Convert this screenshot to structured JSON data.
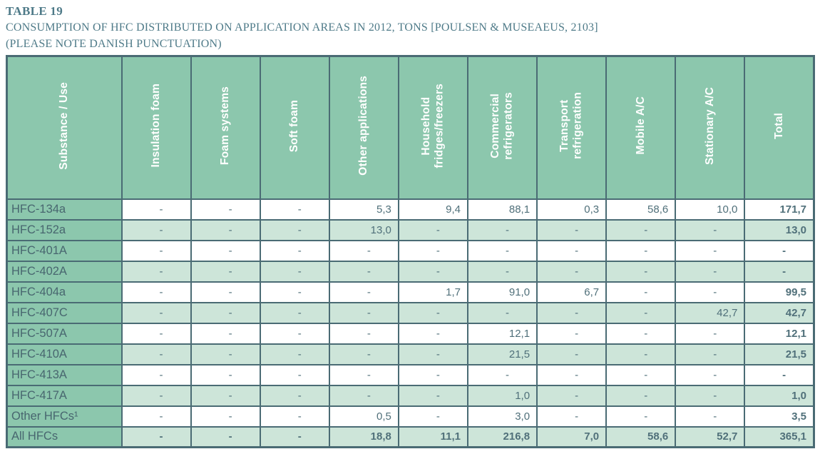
{
  "title": {
    "label": "TABLE 19",
    "line1": "CONSUMPTION OF HFC DISTRIBUTED ON APPLICATION AREAS IN 2012, TONS [POULSEN & MUSEAEUS, 2103]",
    "line2": "(PLEASE NOTE DANISH PUNCTUATION)"
  },
  "table": {
    "columns": [
      "Substance / Use",
      "Insulation foam",
      "Foam systems",
      "Soft foam",
      "Other applications",
      "Household\nfridges/freezers",
      "Commercial\nrefrigerators",
      "Transport\nrefrigeration",
      "Mobile A/C",
      "Stationary A/C",
      "Total"
    ],
    "rows": [
      {
        "substance": "HFC-134a",
        "values": [
          "-",
          "-",
          "-",
          "5,3",
          "9,4",
          "88,1",
          "0,3",
          "58,6",
          "10,0"
        ],
        "total": "171,7"
      },
      {
        "substance": "HFC-152a",
        "values": [
          "-",
          "-",
          "-",
          "13,0",
          "-",
          "-",
          "-",
          "-",
          "-"
        ],
        "total": "13,0"
      },
      {
        "substance": "HFC-401A",
        "values": [
          "-",
          "-",
          "-",
          "-",
          "-",
          "-",
          "-",
          "-",
          "-"
        ],
        "total": "-"
      },
      {
        "substance": "HFC-402A",
        "values": [
          "-",
          "-",
          "-",
          "-",
          "-",
          "-",
          "-",
          "-",
          "-"
        ],
        "total": "-"
      },
      {
        "substance": "HFC-404a",
        "values": [
          "-",
          "-",
          "-",
          "-",
          "1,7",
          "91,0",
          "6,7",
          "-",
          "-"
        ],
        "total": "99,5"
      },
      {
        "substance": "HFC-407C",
        "values": [
          "-",
          "-",
          "-",
          "-",
          "-",
          "-",
          "-",
          "-",
          "42,7"
        ],
        "total": "42,7"
      },
      {
        "substance": "HFC-507A",
        "values": [
          "-",
          "-",
          "-",
          "-",
          "-",
          "12,1",
          "-",
          "-",
          "-"
        ],
        "total": "12,1"
      },
      {
        "substance": "HFC-410A",
        "values": [
          "-",
          "-",
          "-",
          "-",
          "-",
          "21,5",
          "-",
          "-",
          "-"
        ],
        "total": "21,5"
      },
      {
        "substance": "HFC-413A",
        "values": [
          "-",
          "-",
          "-",
          "-",
          "-",
          "-",
          "-",
          "-",
          "-"
        ],
        "total": "-"
      },
      {
        "substance": "HFC-417A",
        "values": [
          "-",
          "-",
          "-",
          "-",
          "-",
          "1,0",
          "-",
          "-",
          "-"
        ],
        "total": "1,0"
      },
      {
        "substance": "Other HFCs¹",
        "values": [
          "-",
          "-",
          "-",
          "0,5",
          "-",
          "3,0",
          "-",
          "-",
          "-"
        ],
        "total": "3,5"
      },
      {
        "substance": "All HFCs",
        "values": [
          "-",
          "-",
          "-",
          "18,8",
          "11,1",
          "216,8",
          "7,0",
          "58,6",
          "52,7"
        ],
        "total": "365,1",
        "grand": true
      }
    ]
  },
  "colors": {
    "header_green": "#8cc7ad",
    "stripe_green": "#cde5d9",
    "border": "#4a6b74",
    "title_text": "#4e7a88",
    "cell_text": "#50707a",
    "header_text": "#ffffff"
  }
}
